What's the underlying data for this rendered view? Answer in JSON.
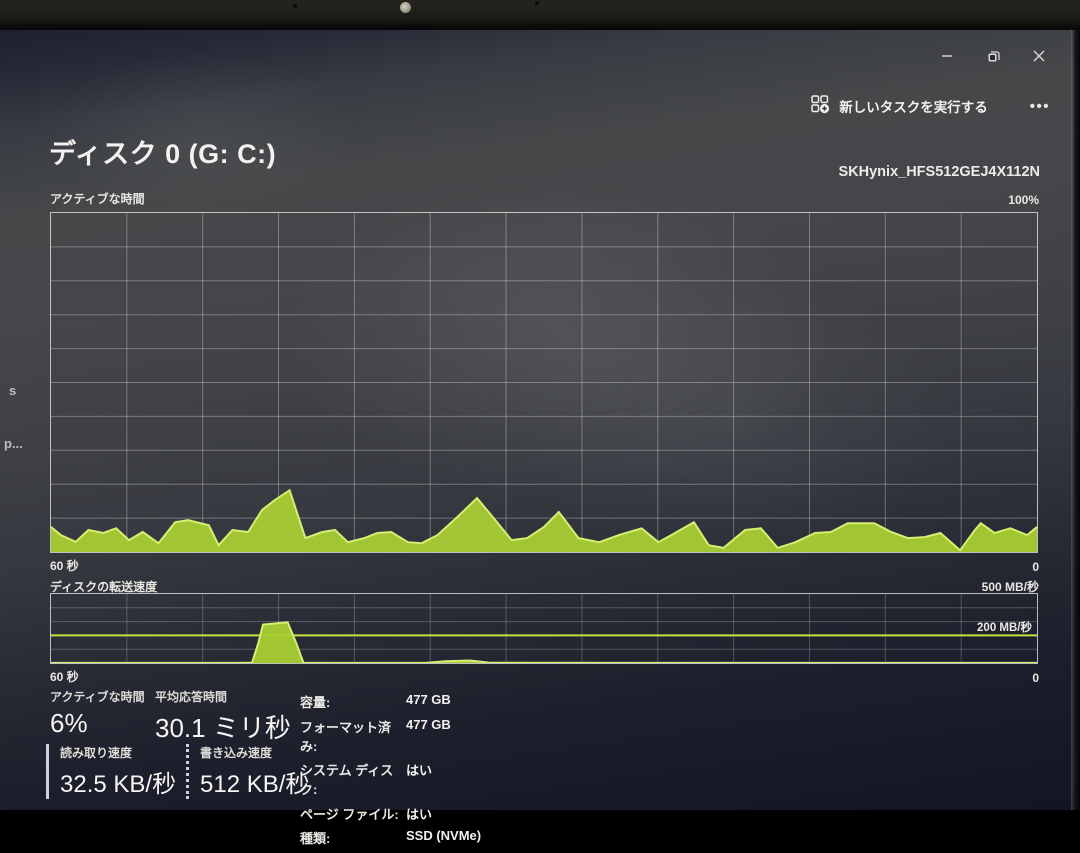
{
  "page": {
    "title": "ディスク 0 (G: C:)",
    "device": "SKHynix_HFS512GEJ4X112N"
  },
  "toolbar": {
    "run_new_task_label": "新しいタスクを実行する",
    "more_label": "•••"
  },
  "window_controls": [
    "minimize",
    "restore",
    "close"
  ],
  "colors": {
    "accent_green_fill": "#a9cd33",
    "accent_green_edge": "#d6ee72",
    "ref_line_green": "#c6e23f",
    "grid_line": "rgba(255,255,255,0.30)",
    "grid_line_fine": "rgba(255,255,255,0.22)"
  },
  "chart_data": [
    {
      "type": "area",
      "title": "アクティブな時間",
      "ylabel_top": "100%",
      "x_left_label": "60 秒",
      "x_right_label": "0",
      "ymax": 100,
      "grid": {
        "cols": 13,
        "rows": 10
      },
      "series": [
        {
          "name": "アクティブな時間 (%)",
          "points": [
            [
              0,
              7.4
            ],
            [
              0.01,
              5
            ],
            [
              0.025,
              3
            ],
            [
              0.038,
              6.5
            ],
            [
              0.053,
              5.6
            ],
            [
              0.066,
              7
            ],
            [
              0.079,
              3.5
            ],
            [
              0.093,
              5.9
            ],
            [
              0.109,
              2.6
            ],
            [
              0.126,
              8.8
            ],
            [
              0.139,
              9.4
            ],
            [
              0.16,
              7.9
            ],
            [
              0.17,
              2
            ],
            [
              0.184,
              6.5
            ],
            [
              0.2,
              5.9
            ],
            [
              0.214,
              12.4
            ],
            [
              0.227,
              15.3
            ],
            [
              0.242,
              18.2
            ],
            [
              0.258,
              4.1
            ],
            [
              0.275,
              5.9
            ],
            [
              0.288,
              6.5
            ],
            [
              0.301,
              2.9
            ],
            [
              0.318,
              4.1
            ],
            [
              0.331,
              5.6
            ],
            [
              0.345,
              5.9
            ],
            [
              0.362,
              2.9
            ],
            [
              0.376,
              2.6
            ],
            [
              0.392,
              5
            ],
            [
              0.412,
              10.3
            ],
            [
              0.432,
              15.9
            ],
            [
              0.449,
              10
            ],
            [
              0.467,
              3.5
            ],
            [
              0.483,
              4.1
            ],
            [
              0.5,
              7.4
            ],
            [
              0.515,
              11.8
            ],
            [
              0.535,
              4.1
            ],
            [
              0.556,
              2.9
            ],
            [
              0.576,
              5
            ],
            [
              0.599,
              7
            ],
            [
              0.616,
              2.9
            ],
            [
              0.629,
              5
            ],
            [
              0.652,
              8.8
            ],
            [
              0.667,
              2
            ],
            [
              0.682,
              1.2
            ],
            [
              0.704,
              6.5
            ],
            [
              0.72,
              7
            ],
            [
              0.737,
              1.2
            ],
            [
              0.755,
              2.9
            ],
            [
              0.775,
              5.6
            ],
            [
              0.791,
              5.9
            ],
            [
              0.808,
              8.5
            ],
            [
              0.835,
              8.5
            ],
            [
              0.852,
              5.9
            ],
            [
              0.869,
              4.1
            ],
            [
              0.886,
              4.4
            ],
            [
              0.902,
              5.6
            ],
            [
              0.922,
              0.5
            ],
            [
              0.937,
              6.5
            ],
            [
              0.943,
              8.5
            ],
            [
              0.957,
              5.6
            ],
            [
              0.973,
              7
            ],
            [
              0.99,
              5
            ],
            [
              1,
              7.4
            ]
          ]
        }
      ]
    },
    {
      "type": "area",
      "title": "ディスクの転送速度",
      "scale_label": "500 MB/秒",
      "x_left_label": "60 秒",
      "x_right_label": "0",
      "ymax": 500,
      "grid": {
        "cols": 13,
        "rows": 5
      },
      "ref_line": {
        "value": 200,
        "label": "200 MB/秒"
      },
      "series": [
        {
          "name": "転送速度 (MB/秒)",
          "points": [
            [
              0,
              1
            ],
            [
              0.19,
              1
            ],
            [
              0.204,
              3
            ],
            [
              0.21,
              140
            ],
            [
              0.215,
              278
            ],
            [
              0.24,
              295
            ],
            [
              0.249,
              140
            ],
            [
              0.256,
              2
            ],
            [
              0.38,
              1
            ],
            [
              0.4,
              12
            ],
            [
              0.425,
              18
            ],
            [
              0.445,
              2
            ],
            [
              0.6,
              1
            ],
            [
              1,
              1
            ]
          ]
        }
      ]
    }
  ],
  "stats": {
    "active_time": {
      "label": "アクティブな時間",
      "value": "6%"
    },
    "avg_response": {
      "label": "平均応答時間",
      "value": "30.1 ミリ秒"
    },
    "read_speed": {
      "label": "読み取り速度",
      "value": "32.5 KB/秒"
    },
    "write_speed": {
      "label": "書き込み速度",
      "value": "512 KB/秒"
    }
  },
  "details": {
    "rows": [
      {
        "label": "容量:",
        "value": "477 GB"
      },
      {
        "label": "フォーマット済み:",
        "value": "477 GB"
      },
      {
        "label": "システム ディスク:",
        "value": "はい"
      },
      {
        "label": "ページ ファイル:",
        "value": "はい"
      },
      {
        "label": "種類:",
        "value": "SSD (NVMe)"
      }
    ]
  },
  "edge_fragments": {
    "upper": "s",
    "lower": "p..."
  }
}
